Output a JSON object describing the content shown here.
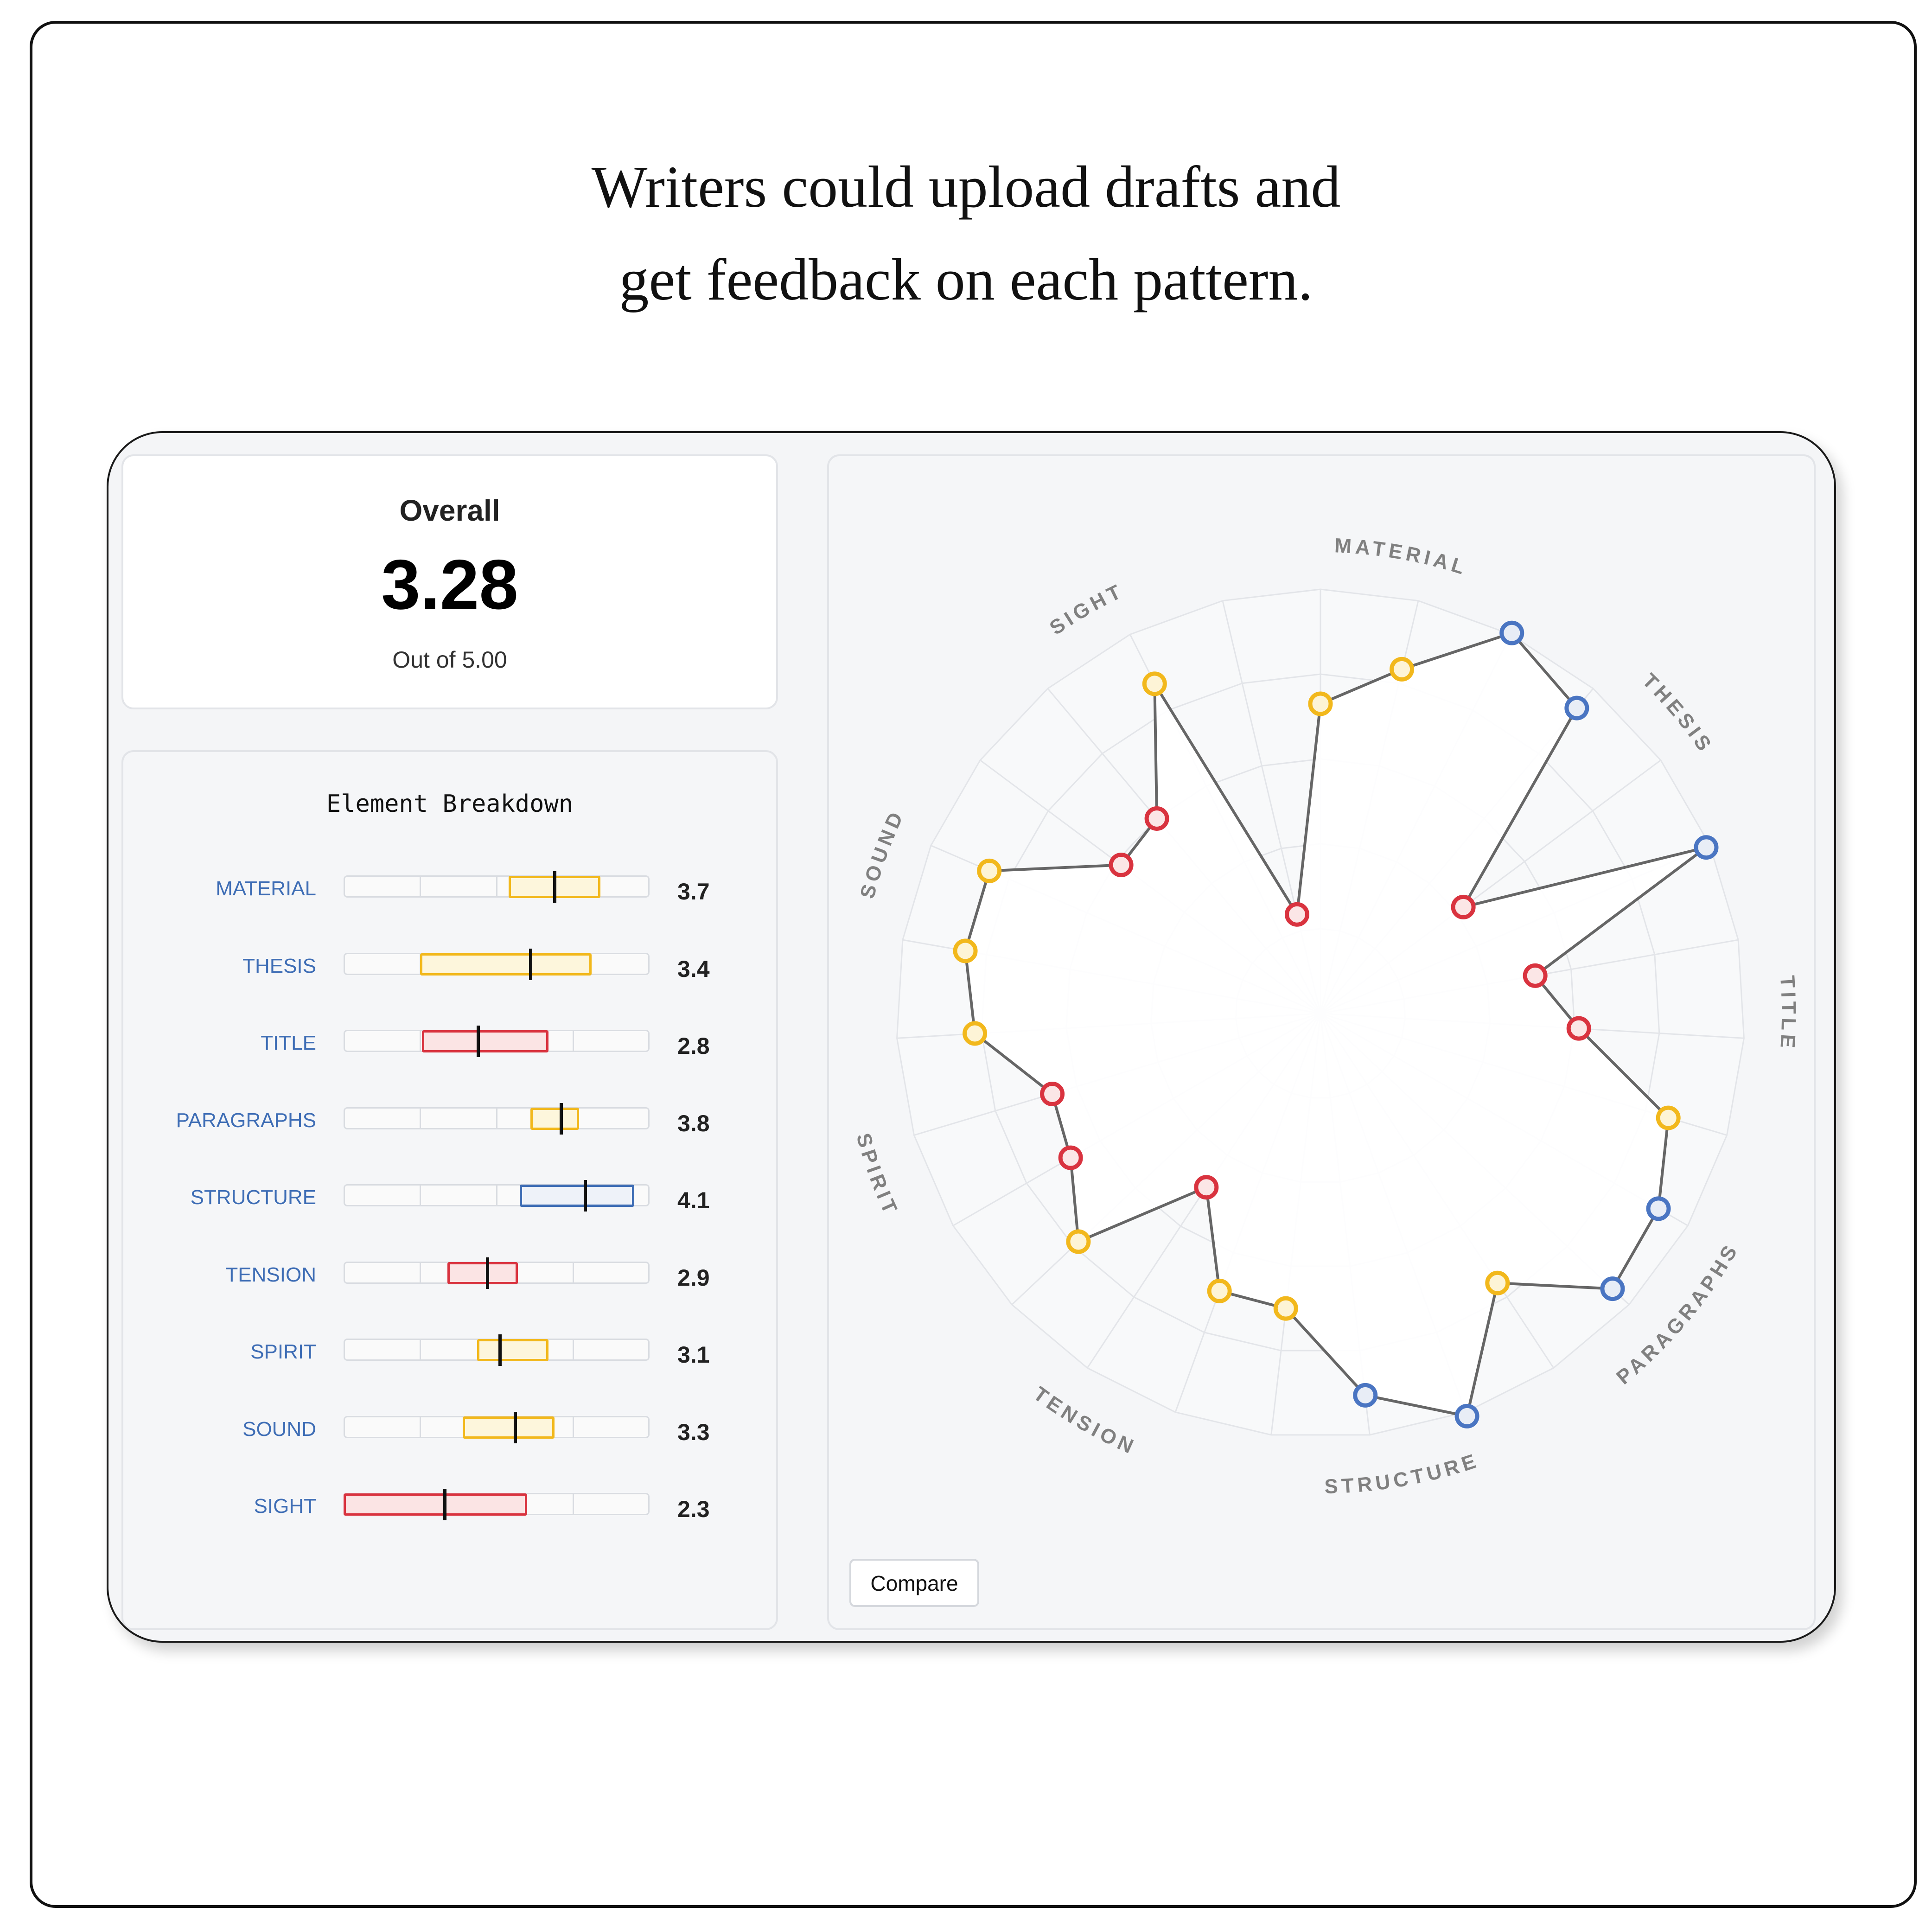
{
  "caption": {
    "line1": "Writers could upload drafts and",
    "line2": "get feedback on each pattern."
  },
  "overall": {
    "title": "Overall",
    "score": "3.28",
    "subtitle": "Out of 5.00"
  },
  "breakdown": {
    "title": "Element Breakdown",
    "scale_max": 5,
    "items": [
      {
        "label": "MATERIAL",
        "value": "3.7",
        "low": 2.7,
        "high": 4.2,
        "median": 3.45,
        "color": "#f2b81c",
        "fill": "#fdf6dc"
      },
      {
        "label": "THESIS",
        "value": "3.4",
        "low": 1.25,
        "high": 4.05,
        "median": 3.05,
        "color": "#f2b81c",
        "fill": "#fdf6dc"
      },
      {
        "label": "TITLE",
        "value": "2.8",
        "low": 1.28,
        "high": 3.35,
        "median": 2.2,
        "color": "#d9333f",
        "fill": "#fbe4e4"
      },
      {
        "label": "PARAGRAPHS",
        "value": "3.8",
        "low": 3.05,
        "high": 3.85,
        "median": 3.55,
        "color": "#f2b81c",
        "fill": "#fdf6dc"
      },
      {
        "label": "STRUCTURE",
        "value": "4.1",
        "low": 2.88,
        "high": 4.75,
        "median": 3.95,
        "color": "#3e6db5",
        "fill": "#eef2f9"
      },
      {
        "label": "TENSION",
        "value": "2.9",
        "low": 1.7,
        "high": 2.85,
        "median": 2.35,
        "color": "#d9333f",
        "fill": "#fbe4e4"
      },
      {
        "label": "SPIRIT",
        "value": "3.1",
        "low": 2.18,
        "high": 3.35,
        "median": 2.55,
        "color": "#f2b81c",
        "fill": "#fdf6dc"
      },
      {
        "label": "SOUND",
        "value": "3.3",
        "low": 1.95,
        "high": 3.45,
        "median": 2.8,
        "color": "#f2b81c",
        "fill": "#fdf6dc"
      },
      {
        "label": "SIGHT",
        "value": "2.3",
        "low": 0.0,
        "high": 3.0,
        "median": 1.65,
        "color": "#d9333f",
        "fill": "#fbe4e4"
      }
    ]
  },
  "chart_data": {
    "type": "radar",
    "rmax": 5,
    "rings": 5,
    "spokes": 27,
    "axes": [
      {
        "label": "MATERIAL",
        "angle": 10
      },
      {
        "label": "THESIS",
        "angle": 50
      },
      {
        "label": "TITLE",
        "angle": 90
      },
      {
        "label": "PARAGRAPHS",
        "angle": 130
      },
      {
        "label": "STRUCTURE",
        "angle": 170
      },
      {
        "label": "TENSION",
        "angle": 210
      },
      {
        "label": "SPIRIT",
        "angle": 250
      },
      {
        "label": "SOUND",
        "angle": 290
      },
      {
        "label": "SIGHT",
        "angle": 330
      }
    ],
    "points": [
      {
        "angle": 0,
        "r": 3.65,
        "color": "yellow"
      },
      {
        "angle": 13.3,
        "r": 4.17,
        "color": "yellow"
      },
      {
        "angle": 26.7,
        "r": 5.02,
        "color": "blue"
      },
      {
        "angle": 40,
        "r": 4.7,
        "color": "blue"
      },
      {
        "angle": 53.3,
        "r": 2.1,
        "color": "red"
      },
      {
        "angle": 66.7,
        "r": 4.95,
        "color": "blue"
      },
      {
        "angle": 80,
        "r": 2.57,
        "color": "red"
      },
      {
        "angle": 93.3,
        "r": 3.05,
        "color": "red"
      },
      {
        "angle": 106.7,
        "r": 4.28,
        "color": "yellow"
      },
      {
        "angle": 120,
        "r": 4.6,
        "color": "blue"
      },
      {
        "angle": 133.3,
        "r": 4.73,
        "color": "blue"
      },
      {
        "angle": 146.7,
        "r": 3.8,
        "color": "yellow"
      },
      {
        "angle": 160,
        "r": 5.05,
        "color": "blue"
      },
      {
        "angle": 173.3,
        "r": 4.53,
        "color": "blue"
      },
      {
        "angle": 186.7,
        "r": 3.5,
        "color": "yellow"
      },
      {
        "angle": 200,
        "r": 3.48,
        "color": "yellow"
      },
      {
        "angle": 213.3,
        "r": 2.45,
        "color": "red"
      },
      {
        "angle": 226.7,
        "r": 3.92,
        "color": "yellow"
      },
      {
        "angle": 240,
        "r": 3.4,
        "color": "red"
      },
      {
        "angle": 253.3,
        "r": 3.3,
        "color": "red"
      },
      {
        "angle": 266.7,
        "r": 4.08,
        "color": "yellow"
      },
      {
        "angle": 280,
        "r": 4.25,
        "color": "yellow"
      },
      {
        "angle": 293.3,
        "r": 4.25,
        "color": "yellow"
      },
      {
        "angle": 306.7,
        "r": 2.93,
        "color": "red"
      },
      {
        "angle": 320,
        "r": 3.0,
        "color": "red"
      },
      {
        "angle": 333.3,
        "r": 4.35,
        "color": "yellow"
      },
      {
        "angle": 346.7,
        "r": 1.2,
        "color": "red"
      }
    ],
    "colors": {
      "yellow": {
        "stroke": "#f2b81c",
        "fill": "#fdf4d6"
      },
      "blue": {
        "stroke": "#4a75c2",
        "fill": "#e8edf6"
      },
      "red": {
        "stroke": "#d9333f",
        "fill": "#fbe6e6"
      },
      "line": "#666666",
      "grid": "#e3e5e9",
      "axis_label": "#808080"
    }
  },
  "compare_button": {
    "label": "Compare"
  }
}
